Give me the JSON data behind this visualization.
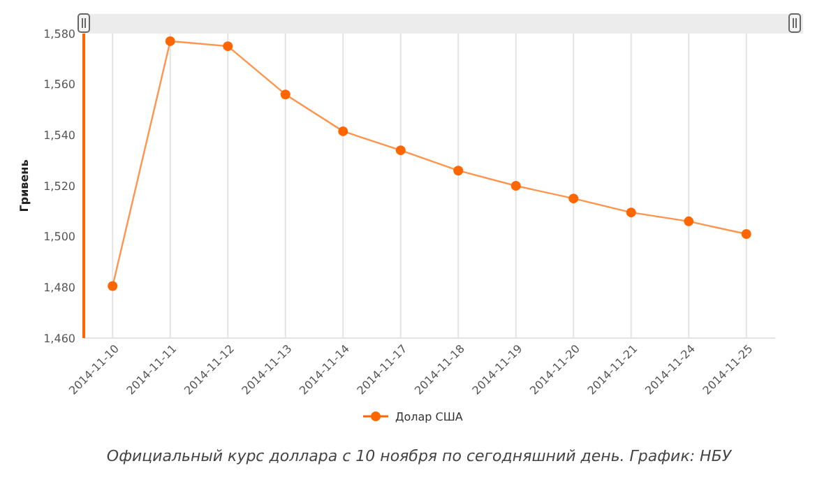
{
  "chart_data": {
    "type": "line",
    "ylabel": "Гривень",
    "categories": [
      "2014-11-10",
      "2014-11-11",
      "2014-11-12",
      "2014-11-13",
      "2014-11-14",
      "2014-11-17",
      "2014-11-18",
      "2014-11-19",
      "2014-11-20",
      "2014-11-21",
      "2014-11-24",
      "2014-11-25"
    ],
    "series": [
      {
        "name": "Долар США",
        "color": "#ff6600",
        "values": [
          1480.5,
          1577,
          1575,
          1556,
          1541.5,
          1534,
          1526,
          1520,
          1515,
          1509.5,
          1506,
          1501
        ]
      }
    ],
    "ylim": [
      1460,
      1580
    ],
    "yticks": [
      {
        "value": 1460,
        "label": "1,460"
      },
      {
        "value": 1480,
        "label": "1,480"
      },
      {
        "value": 1500,
        "label": "1,500"
      },
      {
        "value": 1520,
        "label": "1,520"
      },
      {
        "value": 1540,
        "label": "1,540"
      },
      {
        "value": 1560,
        "label": "1,560"
      },
      {
        "value": 1580,
        "label": "1,580"
      }
    ],
    "grid": "x",
    "legend": "bottom",
    "marker": "circle",
    "line_style": "solid",
    "annotations": [
      "Официальный курс доллара с 10 ноября по сегодняшний день. График: НБУ"
    ]
  }
}
